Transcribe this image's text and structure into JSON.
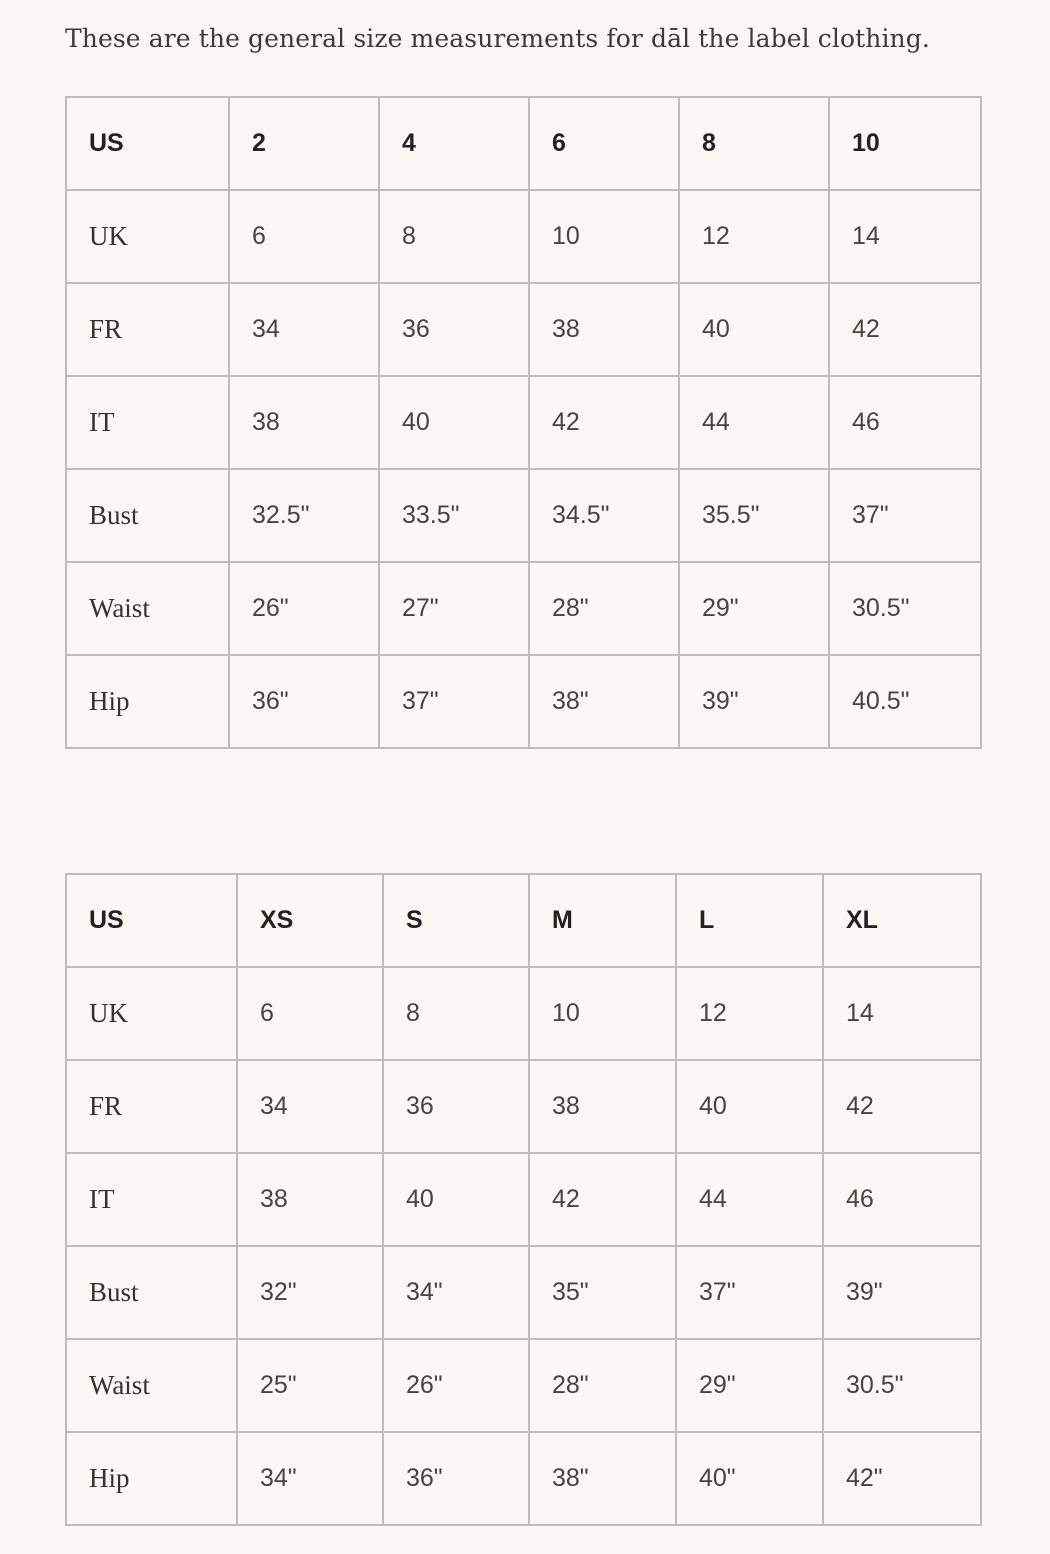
{
  "intro": "These are the general size measurements for dāl the label clothing.",
  "tables": [
    {
      "rows": [
        [
          "US",
          "2",
          "4",
          "6",
          "8",
          "10"
        ],
        [
          "UK",
          "6",
          "8",
          "10",
          "12",
          "14"
        ],
        [
          "FR",
          "34",
          "36",
          "38",
          "40",
          "42"
        ],
        [
          "IT",
          "38",
          "40",
          "42",
          "44",
          "46"
        ],
        [
          "Bust",
          "32.5\"",
          "33.5\"",
          "34.5\"",
          "35.5\"",
          "37\""
        ],
        [
          "Waist",
          "26\"",
          "27\"",
          "28\"",
          "29\"",
          "30.5\""
        ],
        [
          "Hip",
          "36\"",
          "37\"",
          "38\"",
          "39\"",
          "40.5\""
        ]
      ]
    },
    {
      "rows": [
        [
          "US",
          "XS",
          "S",
          "M",
          "L",
          "XL"
        ],
        [
          "UK",
          "6",
          "8",
          "10",
          "12",
          "14"
        ],
        [
          "FR",
          "34",
          "36",
          "38",
          "40",
          "42"
        ],
        [
          "IT",
          "38",
          "40",
          "42",
          "44",
          "46"
        ],
        [
          "Bust",
          "32\"",
          "34\"",
          "35\"",
          "37\"",
          "39\""
        ],
        [
          "Waist",
          "25\"",
          "26\"",
          "28\"",
          "29\"",
          "30.5\""
        ],
        [
          "Hip",
          "34\"",
          "36\"",
          "38\"",
          "40\"",
          "42\""
        ]
      ]
    }
  ]
}
